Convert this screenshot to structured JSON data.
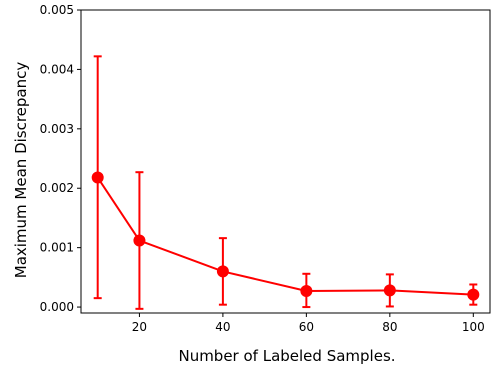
{
  "chart_data": {
    "type": "line",
    "title": "",
    "xlabel": "Number of Labeled Samples.",
    "ylabel": "Maximum Mean Discrepancy",
    "xlim": [
      6,
      104
    ],
    "ylim": [
      -0.0001,
      0.005
    ],
    "xticks": [
      20,
      40,
      60,
      80,
      100
    ],
    "yticks": [
      0.0,
      0.001,
      0.002,
      0.003,
      0.004,
      0.005
    ],
    "ytick_labels": [
      "0.000",
      "0.001",
      "0.002",
      "0.003",
      "0.004",
      "0.005"
    ],
    "grid": false,
    "series": [
      {
        "color": "#ff0000",
        "x": [
          10,
          20,
          40,
          60,
          80,
          100
        ],
        "y": [
          0.00218,
          0.00112,
          0.0006,
          0.00027,
          0.00028,
          0.00021
        ],
        "err_low": [
          0.00015,
          -3e-05,
          4e-05,
          0.0,
          1e-05,
          4e-05
        ],
        "err_high": [
          0.00422,
          0.00227,
          0.00116,
          0.00056,
          0.00055,
          0.00038
        ]
      }
    ]
  }
}
